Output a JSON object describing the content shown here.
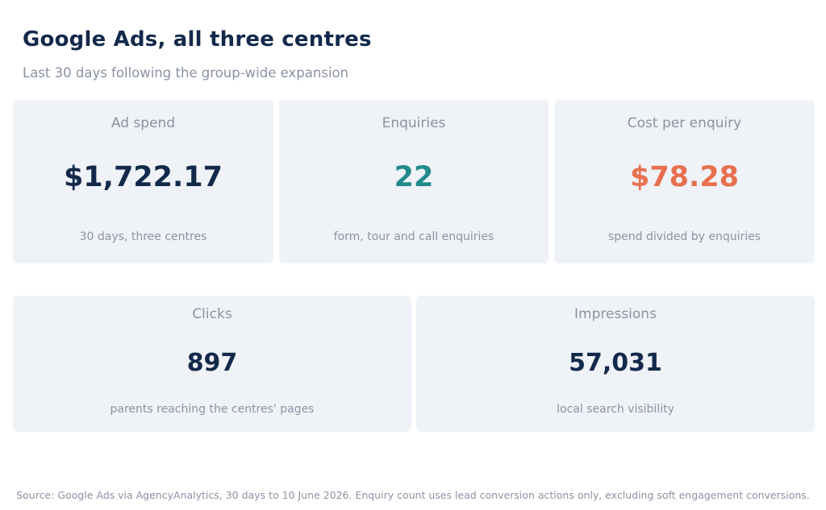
{
  "header": {
    "title": "Google Ads, all three centres",
    "subtitle": "Last 30 days following the group-wide expansion"
  },
  "cards": [
    {
      "label": "Ad spend",
      "value": "$1,722.17",
      "note": "30 days, three centres",
      "value_color": "#13294b"
    },
    {
      "label": "Enquiries",
      "value": "22",
      "note": "form, tour and call enquiries",
      "value_color": "#218b8b"
    },
    {
      "label": "Cost per enquiry",
      "value": "$78.28",
      "note": "spend divided by enquiries",
      "value_color": "#e8704f"
    },
    {
      "label": "Clicks",
      "value": "897",
      "note": "parents reaching the centres' pages",
      "value_color": "#13294b"
    },
    {
      "label": "Impressions",
      "value": "57,031",
      "note": "local search visibility",
      "value_color": "#13294b"
    }
  ],
  "footer": {
    "source": "Source: Google Ads via AgencyAnalytics, 30 days to 10 June 2026. Enquiry count uses lead conversion actions only, excluding soft engagement conversions."
  }
}
